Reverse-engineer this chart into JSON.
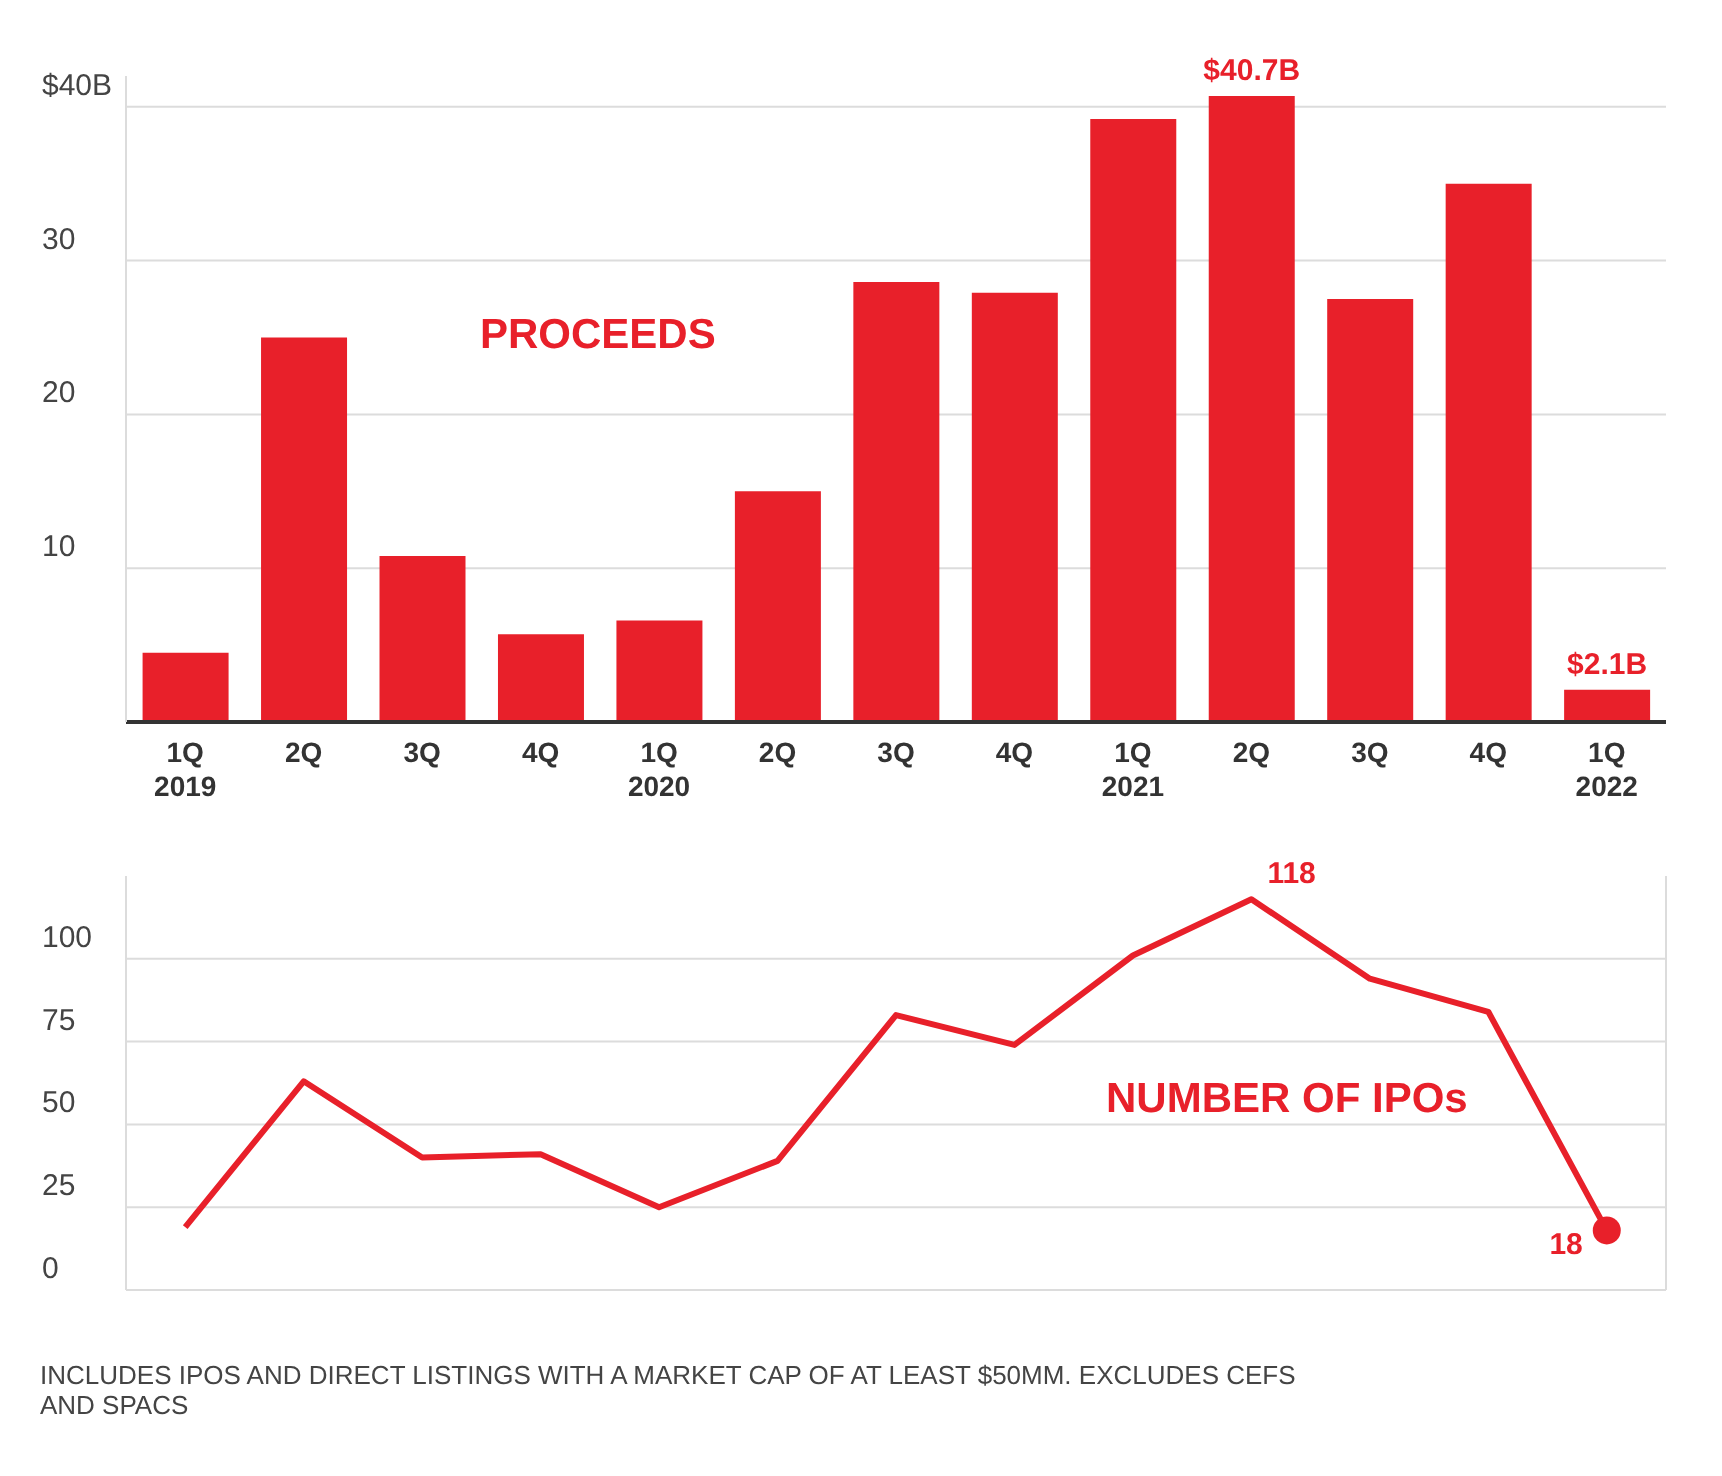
{
  "chart_data": [
    {
      "type": "bar",
      "categories": [
        "1Q 2019",
        "2Q",
        "3Q",
        "4Q",
        "1Q 2020",
        "2Q",
        "3Q",
        "4Q",
        "1Q 2021",
        "2Q",
        "3Q",
        "4Q",
        "1Q 2022"
      ],
      "series": [
        {
          "color": "#e8202a",
          "values": [
            4.5,
            25,
            10.8,
            5.7,
            6.6,
            15,
            28.6,
            27.9,
            39.2,
            40.7,
            27.5,
            35,
            2.1
          ],
          "value_labels": [
            null,
            null,
            null,
            null,
            null,
            null,
            null,
            null,
            null,
            "$40.7B",
            null,
            null,
            "$2.1B"
          ]
        }
      ],
      "ylim": [
        0,
        42
      ],
      "yticks": [
        10,
        20,
        30,
        {
          "value": 40,
          "label": "$40B"
        }
      ],
      "grid": "y",
      "legend": false,
      "annotations": [
        "PROCEEDS"
      ]
    },
    {
      "type": "line",
      "categories": [
        "1Q 2019",
        "2Q",
        "3Q",
        "4Q",
        "1Q 2020",
        "2Q",
        "3Q",
        "4Q",
        "1Q 2021",
        "2Q",
        "3Q",
        "4Q",
        "1Q 2022"
      ],
      "series": [
        {
          "color": "#e8202a",
          "values": [
            19,
            63,
            40,
            41,
            25,
            39,
            83,
            74,
            101,
            118,
            94,
            84,
            18
          ],
          "value_labels": [
            null,
            null,
            null,
            null,
            null,
            null,
            null,
            null,
            null,
            "118",
            null,
            null,
            "18"
          ]
        },
        {
          "type": "scatter",
          "color": "#e8202a",
          "x": [
            "1Q 2022"
          ],
          "values": [
            18
          ]
        }
      ],
      "ylim": [
        0,
        125
      ],
      "yticks": [
        0,
        25,
        50,
        75,
        100
      ],
      "grid": true,
      "legend": false,
      "tick_labels": "y",
      "annotations": [
        "NUMBER OF IPOs",
        "INCLUDES IPOS AND DIRECT LISTINGS WITH A MARKET CAP OF AT LEAST $50MM. EXCLUDES CEFS AND SPACS"
      ]
    }
  ]
}
